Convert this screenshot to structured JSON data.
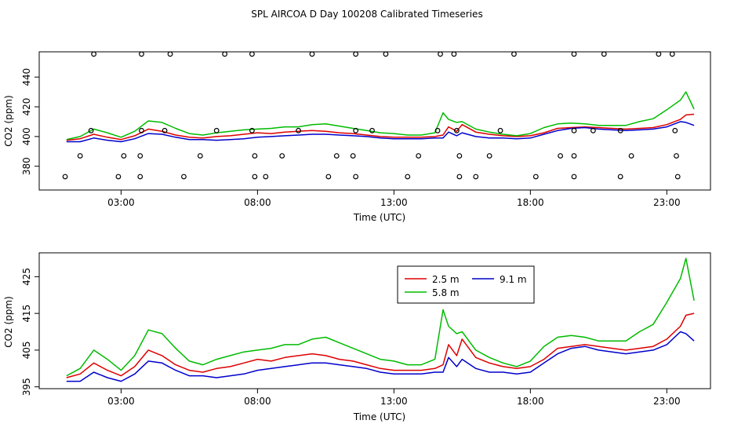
{
  "title": "SPL AIRCOA D  Day 100208  Calibrated Timeseries",
  "colors": {
    "c25": "#dd0000",
    "c58": "#00bb00",
    "c91": "#0000cc"
  },
  "chart_data": [
    {
      "type": "line",
      "panel": "top",
      "xlabel": "Time (UTC)",
      "ylabel": "CO2 (ppm)",
      "xlim": [
        0,
        24.6
      ],
      "ylim": [
        364,
        457
      ],
      "xticks": [
        3,
        8,
        13,
        18,
        23
      ],
      "xtick_labels": [
        "03:00",
        "08:00",
        "13:00",
        "18:00",
        "23:00"
      ],
      "yticks": [
        380,
        400,
        420,
        440
      ],
      "ytick_labels": [
        "380",
        "400",
        "420",
        "440"
      ],
      "x": [
        1.0,
        1.5,
        2.0,
        2.5,
        3.0,
        3.5,
        4.0,
        4.5,
        5.0,
        5.5,
        6.0,
        6.5,
        7.0,
        7.5,
        8.0,
        8.5,
        9.0,
        9.5,
        10.0,
        10.5,
        11.0,
        11.5,
        12.0,
        12.5,
        13.0,
        13.5,
        14.0,
        14.5,
        14.8,
        15.0,
        15.3,
        15.5,
        16.0,
        16.5,
        17.0,
        17.5,
        18.0,
        18.5,
        19.0,
        19.5,
        20.0,
        20.5,
        21.0,
        21.5,
        22.0,
        22.5,
        23.0,
        23.5,
        23.7,
        24.0
      ],
      "series": [
        {
          "name": "2.5 m",
          "color": "c25",
          "values": [
            397.5,
            398.5,
            401.5,
            399.5,
            398.0,
            400.5,
            405.0,
            403.5,
            401.0,
            399.5,
            399.0,
            400.0,
            400.5,
            401.5,
            402.5,
            402.0,
            403.0,
            403.5,
            404.0,
            403.5,
            402.5,
            402.0,
            401.0,
            400.0,
            399.5,
            399.5,
            399.5,
            400.0,
            401.0,
            406.5,
            403.5,
            408.0,
            403.0,
            401.5,
            400.5,
            400.0,
            400.5,
            402.5,
            405.5,
            406.0,
            406.5,
            406.0,
            405.5,
            405.0,
            405.5,
            406.0,
            408.0,
            411.5,
            414.5,
            415.0
          ]
        },
        {
          "name": "5.8 m",
          "color": "c58",
          "values": [
            398.0,
            400.0,
            405.0,
            402.5,
            399.5,
            403.5,
            410.5,
            409.5,
            405.5,
            402.0,
            401.0,
            402.5,
            403.5,
            404.5,
            405.0,
            405.5,
            406.5,
            406.5,
            408.0,
            408.5,
            407.0,
            405.5,
            404.0,
            402.5,
            402.0,
            401.0,
            401.0,
            402.5,
            416.0,
            411.5,
            409.5,
            410.0,
            405.0,
            403.0,
            401.5,
            400.5,
            402.0,
            406.0,
            408.5,
            409.0,
            408.5,
            407.5,
            407.5,
            407.5,
            410.0,
            412.0,
            418.0,
            424.5,
            430.0,
            418.5
          ]
        },
        {
          "name": "9.1 m",
          "color": "c91",
          "values": [
            396.5,
            396.5,
            399.0,
            397.5,
            396.5,
            398.5,
            402.0,
            401.5,
            399.5,
            398.0,
            398.0,
            397.5,
            398.0,
            398.5,
            399.5,
            400.0,
            400.5,
            401.0,
            401.5,
            401.5,
            401.0,
            400.5,
            400.0,
            399.0,
            398.5,
            398.5,
            398.5,
            399.0,
            399.0,
            403.0,
            400.5,
            402.5,
            400.0,
            399.0,
            399.0,
            398.5,
            399.0,
            401.5,
            404.0,
            405.5,
            406.0,
            405.0,
            404.5,
            404.0,
            404.5,
            405.0,
            406.5,
            410.0,
            409.5,
            407.5
          ]
        }
      ],
      "markers": [
        [
          2.0,
          455.5
        ],
        [
          3.75,
          455.5
        ],
        [
          4.8,
          455.5
        ],
        [
          6.8,
          455.5
        ],
        [
          7.8,
          455.5
        ],
        [
          10.0,
          455.5
        ],
        [
          11.6,
          455.5
        ],
        [
          12.7,
          455.5
        ],
        [
          14.7,
          455.5
        ],
        [
          15.2,
          455.5
        ],
        [
          17.4,
          455.5
        ],
        [
          19.6,
          455.5
        ],
        [
          20.7,
          455.5
        ],
        [
          22.7,
          455.5
        ],
        [
          23.2,
          455.5
        ],
        [
          1.9,
          404
        ],
        [
          3.75,
          404
        ],
        [
          4.6,
          404
        ],
        [
          6.5,
          404
        ],
        [
          7.8,
          404
        ],
        [
          9.5,
          404
        ],
        [
          11.6,
          404
        ],
        [
          12.2,
          404
        ],
        [
          14.6,
          404
        ],
        [
          15.3,
          404
        ],
        [
          16.9,
          404
        ],
        [
          19.6,
          404
        ],
        [
          20.3,
          404
        ],
        [
          21.3,
          404
        ],
        [
          23.3,
          404
        ],
        [
          1.5,
          387
        ],
        [
          3.1,
          387
        ],
        [
          3.7,
          387
        ],
        [
          5.9,
          387
        ],
        [
          7.9,
          387
        ],
        [
          8.9,
          387
        ],
        [
          10.9,
          387
        ],
        [
          11.5,
          387
        ],
        [
          13.9,
          387
        ],
        [
          15.4,
          387
        ],
        [
          16.5,
          387
        ],
        [
          19.1,
          387
        ],
        [
          19.6,
          387
        ],
        [
          21.7,
          387
        ],
        [
          23.35,
          387
        ],
        [
          0.95,
          373
        ],
        [
          2.9,
          373
        ],
        [
          3.7,
          373
        ],
        [
          5.3,
          373
        ],
        [
          7.9,
          373
        ],
        [
          8.3,
          373
        ],
        [
          10.6,
          373
        ],
        [
          11.6,
          373
        ],
        [
          13.5,
          373
        ],
        [
          15.4,
          373
        ],
        [
          16.0,
          373
        ],
        [
          18.2,
          373
        ],
        [
          19.6,
          373
        ],
        [
          21.3,
          373
        ],
        [
          23.4,
          373
        ]
      ]
    },
    {
      "type": "line",
      "panel": "bottom",
      "xlabel": "Time (UTC)",
      "ylabel": "CO2 (ppm)",
      "xlim": [
        0,
        24.6
      ],
      "ylim": [
        394.5,
        431.5
      ],
      "xticks": [
        3,
        8,
        13,
        18,
        23
      ],
      "xtick_labels": [
        "03:00",
        "08:00",
        "13:00",
        "18:00",
        "23:00"
      ],
      "yticks": [
        395,
        405,
        415,
        425
      ],
      "ytick_labels": [
        "395",
        "405",
        "415",
        "425"
      ],
      "legend": {
        "position": "top-right",
        "entries": [
          "2.5 m",
          "9.1 m",
          "5.8 m"
        ]
      }
    }
  ]
}
